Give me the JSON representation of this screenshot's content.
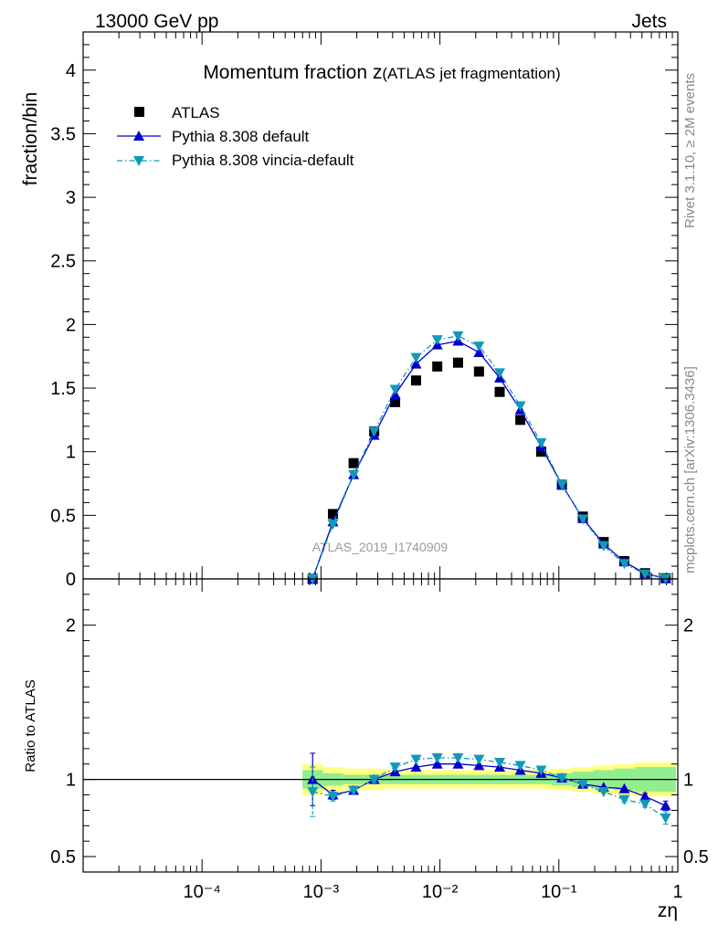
{
  "header": {
    "energy_label": "13000 GeV pp",
    "process_label": "Jets"
  },
  "side_labels": {
    "rivet": "Rivet 3.1.10, ≥ 2M events",
    "mcplots": "mcplots.cern.ch [arXiv:1306.3436]"
  },
  "chart_data": {
    "type": "scatter",
    "title_main": "Momentum fraction z",
    "title_sub": "(ATLAS jet fragmentation)",
    "watermark": "ATLAS_2019_I1740909",
    "xlabel": "zη",
    "ylabel_main": "fraction/bin",
    "ylabel_ratio": "Ratio to ATLAS",
    "x_scale": "log",
    "xlim": [
      1e-05,
      1
    ],
    "x_tick_labels": [
      "10⁻⁴",
      "10⁻³",
      "10⁻²",
      "10⁻¹",
      "1"
    ],
    "main": {
      "ylim": [
        0,
        4.3
      ],
      "y_ticks": [
        0,
        0.5,
        1,
        1.5,
        2,
        2.5,
        3,
        3.5,
        4
      ],
      "y_tick_labels": [
        "0",
        "0.5",
        "1",
        "1.5",
        "2",
        "2.5",
        "3",
        "3.5",
        "4"
      ]
    },
    "ratio": {
      "ylim": [
        0.4,
        2.3
      ],
      "y_ticks": [
        0.5,
        1,
        2
      ],
      "y_tick_labels": [
        "0.5",
        "1",
        "2"
      ],
      "band_inner_color": "#90ee90",
      "band_outer_color": "#ffff80"
    },
    "legend_position": "top-left",
    "x": [
      0.00085,
      0.00126,
      0.00188,
      0.0028,
      0.0042,
      0.0063,
      0.0095,
      0.0142,
      0.0213,
      0.0318,
      0.0474,
      0.071,
      0.106,
      0.159,
      0.238,
      0.355,
      0.53,
      0.79
    ],
    "series": [
      {
        "name": "ATLAS",
        "color": "#000000",
        "marker": "square",
        "values": [
          0.0,
          0.51,
          0.91,
          1.16,
          1.39,
          1.56,
          1.67,
          1.7,
          1.63,
          1.47,
          1.25,
          1.0,
          0.74,
          0.49,
          0.29,
          0.14,
          0.045,
          0.005
        ]
      },
      {
        "name": "Pythia 8.308 default",
        "color": "#0000cc",
        "marker": "triangle-up",
        "line": "solid",
        "values": [
          0.0,
          0.45,
          0.82,
          1.13,
          1.45,
          1.69,
          1.84,
          1.87,
          1.78,
          1.58,
          1.33,
          1.04,
          0.74,
          0.475,
          0.275,
          0.135,
          0.042,
          0.004
        ],
        "ratio": [
          1.0,
          0.9,
          0.93,
          1.0,
          1.05,
          1.08,
          1.1,
          1.1,
          1.09,
          1.08,
          1.06,
          1.04,
          1.01,
          0.97,
          0.95,
          0.94,
          0.89,
          0.83
        ],
        "ratio_err": [
          0.17,
          0.03,
          0.02,
          0.02,
          0.01,
          0.01,
          0.01,
          0.01,
          0.01,
          0.01,
          0.01,
          0.01,
          0.01,
          0.01,
          0.01,
          0.01,
          0.02,
          0.03
        ]
      },
      {
        "name": "Pythia 8.308 vincia-default",
        "color": "#1199bb",
        "marker": "triangle-down",
        "line": "dash-dot",
        "values": [
          0.0,
          0.43,
          0.82,
          1.16,
          1.49,
          1.74,
          1.88,
          1.91,
          1.83,
          1.62,
          1.36,
          1.07,
          0.74,
          0.47,
          0.26,
          0.12,
          0.038,
          0.0035
        ],
        "ratio": [
          0.92,
          0.89,
          0.93,
          1.0,
          1.08,
          1.13,
          1.14,
          1.14,
          1.13,
          1.11,
          1.09,
          1.06,
          1.01,
          0.97,
          0.92,
          0.87,
          0.84,
          0.75
        ],
        "ratio_err": [
          0.16,
          0.03,
          0.02,
          0.02,
          0.01,
          0.01,
          0.01,
          0.01,
          0.01,
          0.01,
          0.01,
          0.01,
          0.01,
          0.01,
          0.01,
          0.02,
          0.02,
          0.04
        ]
      }
    ],
    "ratio_band": {
      "inner": [
        0.06,
        0.04,
        0.03,
        0.03,
        0.03,
        0.03,
        0.03,
        0.03,
        0.03,
        0.03,
        0.03,
        0.03,
        0.04,
        0.05,
        0.06,
        0.07,
        0.08,
        0.08
      ],
      "outer": [
        0.1,
        0.08,
        0.07,
        0.07,
        0.06,
        0.06,
        0.06,
        0.06,
        0.06,
        0.06,
        0.06,
        0.06,
        0.07,
        0.08,
        0.09,
        0.1,
        0.11,
        0.11
      ]
    }
  }
}
